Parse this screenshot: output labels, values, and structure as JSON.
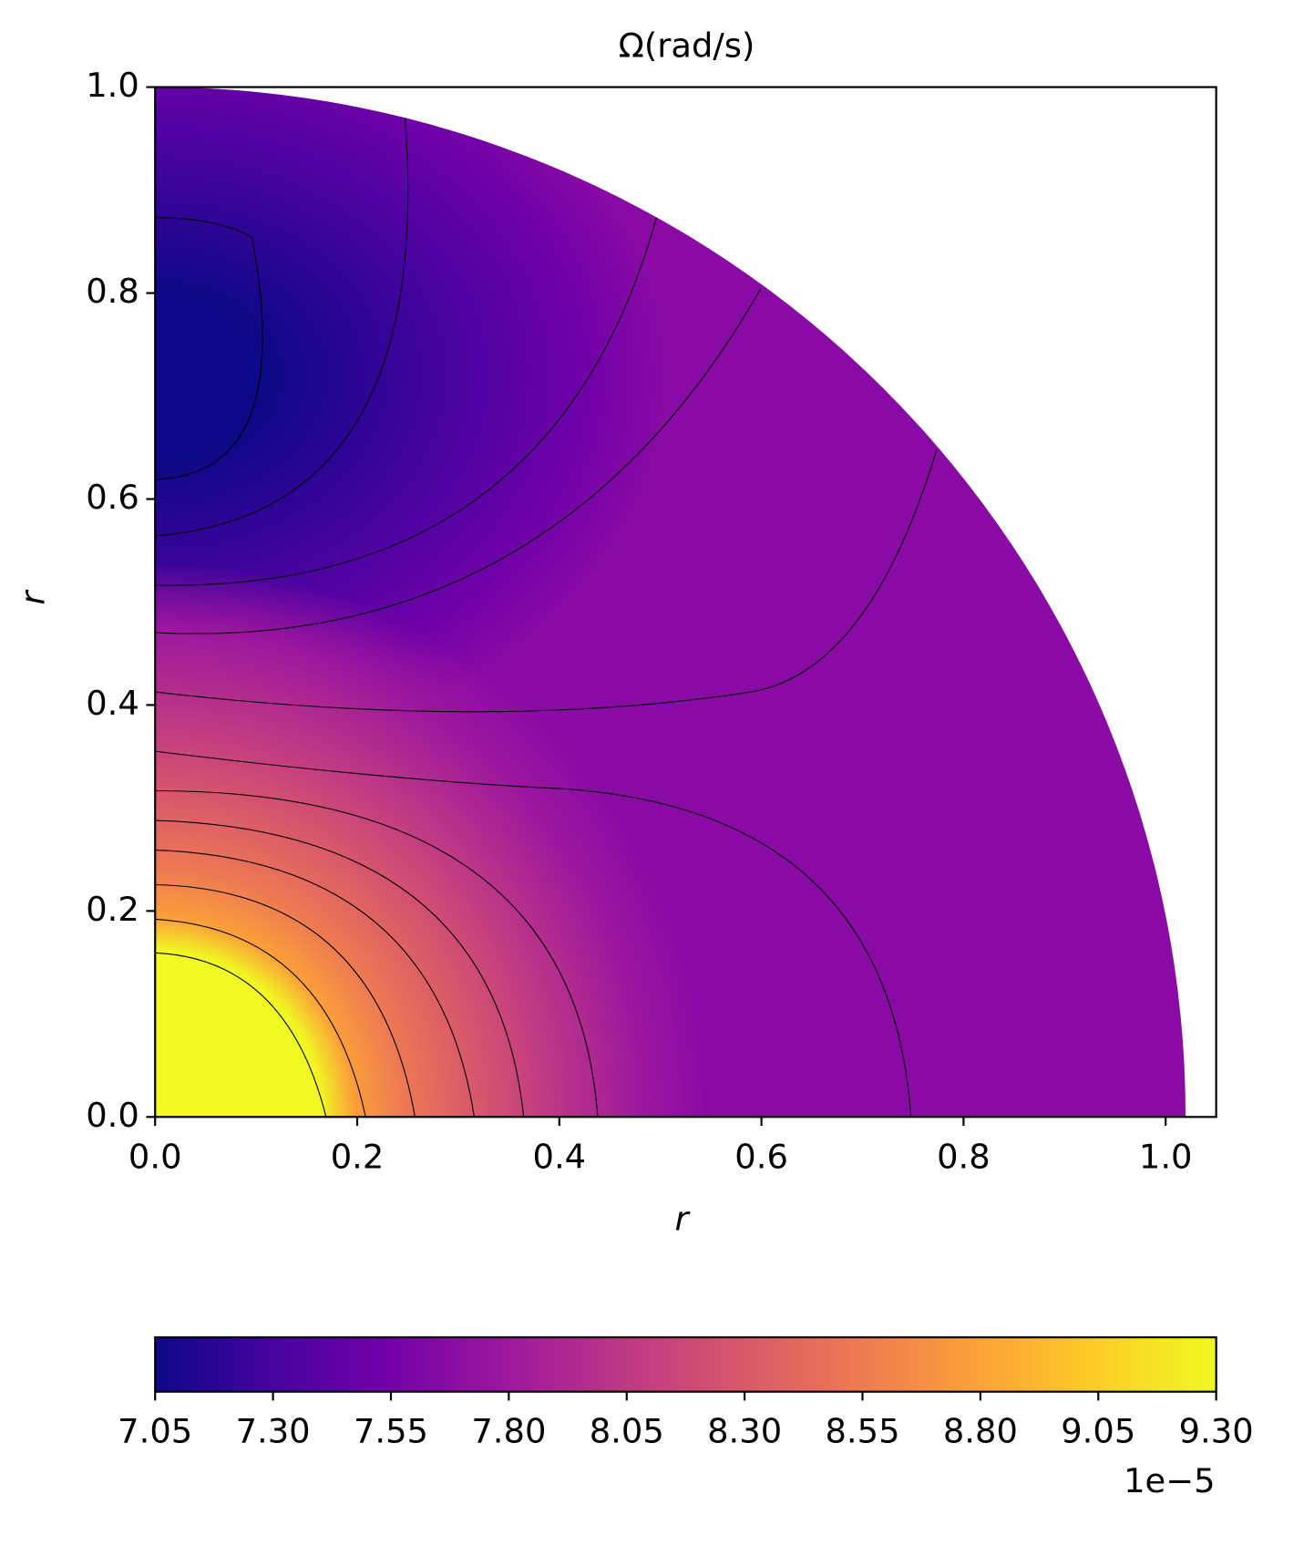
{
  "chart_data": {
    "type": "contourf",
    "title": "Ω(rad/s)",
    "xlabel": "r",
    "ylabel": "r",
    "xlim": [
      0,
      1.05
    ],
    "ylim": [
      0,
      1.0
    ],
    "xticks": [
      {
        "value": 0,
        "label": "0.0"
      },
      {
        "value": 0.2,
        "label": "0.2"
      },
      {
        "value": 0.4,
        "label": "0.4"
      },
      {
        "value": 0.6,
        "label": "0.6"
      },
      {
        "value": 0.8,
        "label": "0.8"
      },
      {
        "value": 1.0,
        "label": "1.0"
      }
    ],
    "yticks": [
      {
        "value": 0,
        "label": "0.0"
      },
      {
        "value": 0.2,
        "label": "0.2"
      },
      {
        "value": 0.4,
        "label": "0.4"
      },
      {
        "value": 0.6,
        "label": "0.6"
      },
      {
        "value": 0.8,
        "label": "0.8"
      },
      {
        "value": 1.0,
        "label": "1.0"
      }
    ],
    "colormap": "plasma",
    "colorbar": {
      "lim": [
        7.05,
        9.3
      ],
      "offset_label": "1e−5",
      "ticks": [
        {
          "value": 7.05,
          "label": "7.05"
        },
        {
          "value": 7.3,
          "label": "7.30"
        },
        {
          "value": 7.55,
          "label": "7.55"
        },
        {
          "value": 7.8,
          "label": "7.80"
        },
        {
          "value": 8.05,
          "label": "8.05"
        },
        {
          "value": 8.3,
          "label": "8.30"
        },
        {
          "value": 8.55,
          "label": "8.55"
        },
        {
          "value": 8.8,
          "label": "8.80"
        },
        {
          "value": 9.05,
          "label": "9.05"
        },
        {
          "value": 9.3,
          "label": "9.30"
        }
      ]
    }
  }
}
